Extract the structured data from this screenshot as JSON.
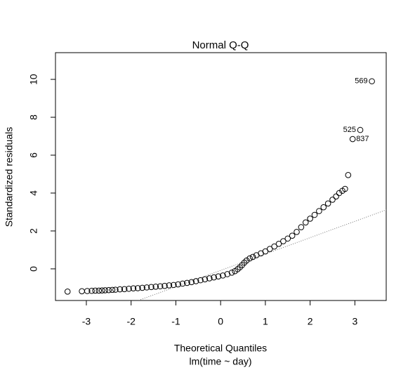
{
  "chart_data": {
    "type": "scatter",
    "title": "Normal Q-Q",
    "x_label": "Theoretical Quantiles",
    "subtitle": "lm(time ~ day)",
    "y_label": "Standardized residuals",
    "xlim": [
      -3.69,
      3.7
    ],
    "ylim": [
      -1.67,
      11.41
    ],
    "xticks": [
      -3,
      -2,
      -1,
      0,
      1,
      2,
      3
    ],
    "yticks": [
      0,
      2,
      4,
      6,
      8,
      10
    ],
    "color": "#000000",
    "reference_line": {
      "intercept": -0.08,
      "slope": 0.863
    },
    "x": [
      -3.42,
      -3.1,
      -2.98,
      -2.88,
      -2.8,
      -2.72,
      -2.65,
      -2.58,
      -2.5,
      -2.42,
      -2.35,
      -2.25,
      -2.15,
      -2.05,
      -1.95,
      -1.85,
      -1.75,
      -1.65,
      -1.55,
      -1.45,
      -1.35,
      -1.25,
      -1.15,
      -1.05,
      -0.95,
      -0.85,
      -0.75,
      -0.65,
      -0.55,
      -0.45,
      -0.35,
      -0.25,
      -0.15,
      -0.05,
      0.05,
      0.15,
      0.25,
      0.32,
      0.38,
      0.43,
      0.48,
      0.53,
      0.58,
      0.65,
      0.72,
      0.8,
      0.9,
      1.0,
      1.1,
      1.2,
      1.3,
      1.4,
      1.5,
      1.6,
      1.7,
      1.8,
      1.9,
      2.0,
      2.1,
      2.2,
      2.3,
      2.4,
      2.5,
      2.58,
      2.65,
      2.72,
      2.78,
      2.85,
      2.95,
      3.12,
      3.38
    ],
    "values": [
      -1.2,
      -1.18,
      -1.17,
      -1.16,
      -1.15,
      -1.15,
      -1.14,
      -1.13,
      -1.12,
      -1.11,
      -1.1,
      -1.08,
      -1.07,
      -1.05,
      -1.03,
      -1.02,
      -1.0,
      -0.98,
      -0.96,
      -0.94,
      -0.92,
      -0.9,
      -0.87,
      -0.85,
      -0.82,
      -0.78,
      -0.74,
      -0.7,
      -0.65,
      -0.6,
      -0.55,
      -0.5,
      -0.45,
      -0.4,
      -0.35,
      -0.28,
      -0.2,
      -0.12,
      -0.02,
      0.08,
      0.2,
      0.33,
      0.44,
      0.55,
      0.63,
      0.72,
      0.82,
      0.92,
      1.05,
      1.18,
      1.32,
      1.46,
      1.6,
      1.75,
      1.95,
      2.2,
      2.45,
      2.65,
      2.85,
      3.05,
      3.25,
      3.45,
      3.65,
      3.82,
      4.0,
      4.12,
      4.22,
      4.95,
      6.85,
      7.33,
      9.9
    ],
    "annotations": [
      {
        "label": "569",
        "x": 3.38,
        "y": 9.9
      },
      {
        "label": "525",
        "x": 3.12,
        "y": 7.33
      },
      {
        "label": "837",
        "x": 2.95,
        "y": 6.85
      }
    ]
  }
}
